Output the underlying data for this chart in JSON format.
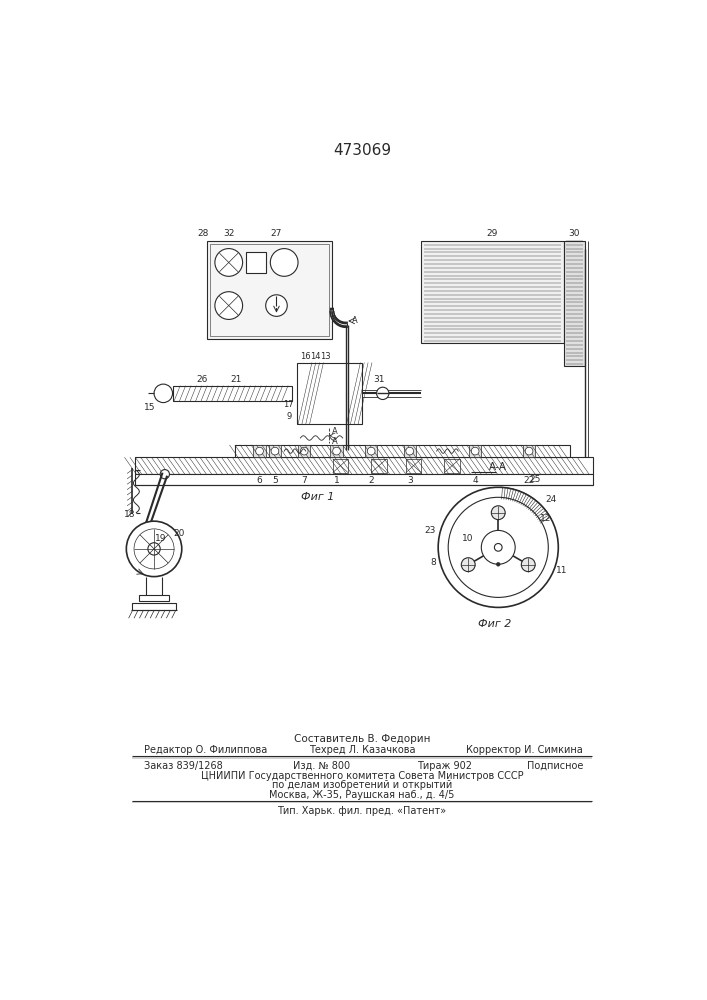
{
  "patent_number": "473069",
  "fig1_label": "Фиг 1",
  "fig2_label": "Фиг 2",
  "section_label": "А-А",
  "composer": "Составитель В. Федорин",
  "editor": "Редактор О. Филиппова",
  "techred": "Техред Л. Казачкова",
  "corrector": "Корректор И. Симкина",
  "order": "Заказ 839/1268",
  "edition": "Изд. № 800",
  "circulation": "Тираж 902",
  "subscription": "Подписное",
  "org_line1": "ЦНИИПИ Государственного комитета Совета Министров СССР",
  "org_line2": "по делам изобретений и открытий",
  "org_line3": "Москва, Ж-35, Раушская наб., д. 4/5",
  "printer": "Тип. Харьк. фил. пред. «Патент»",
  "bg_color": "#ffffff",
  "line_color": "#2a2a2a"
}
